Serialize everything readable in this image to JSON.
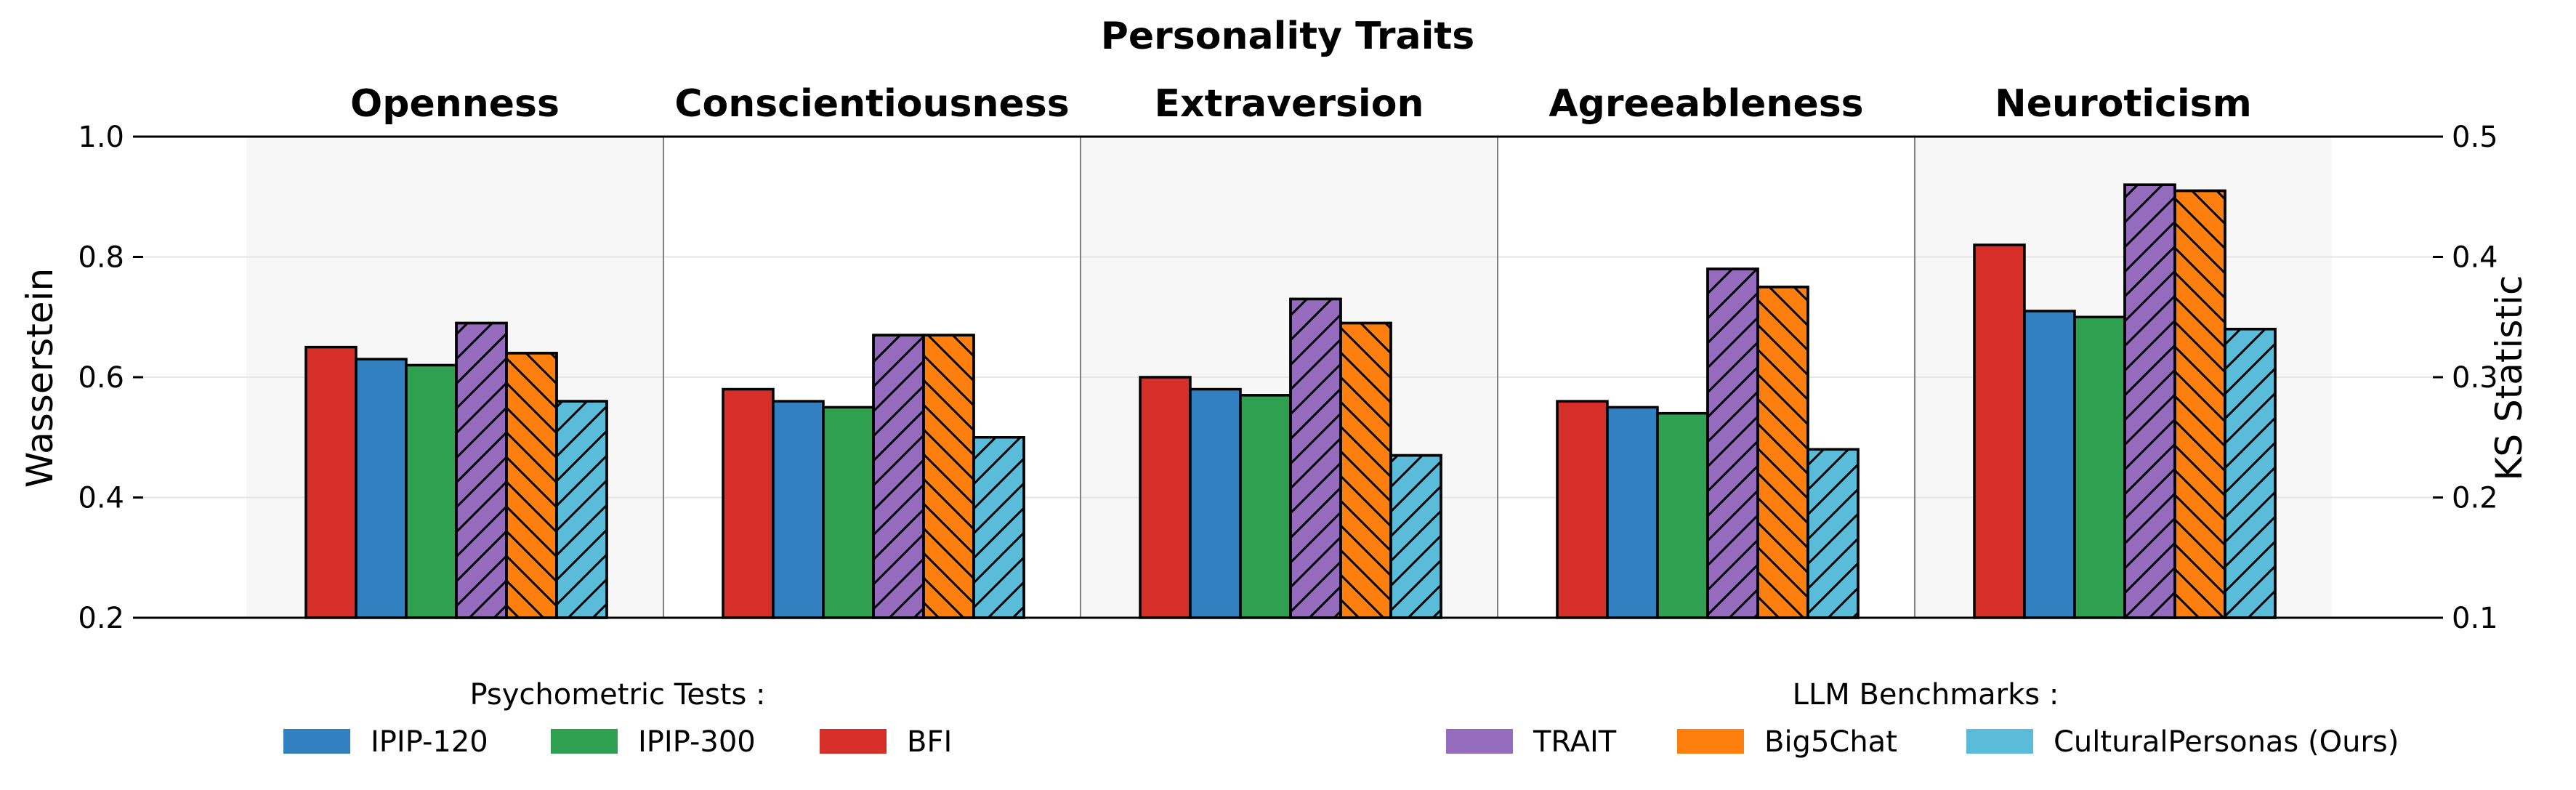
{
  "chart_data": {
    "type": "bar",
    "title": "Personality Traits",
    "categories": [
      "Openness",
      "Conscientiousness",
      "Extraversion",
      "Agreeableness",
      "Neuroticism"
    ],
    "ylabel": "Wasserstein",
    "ylabel_right": "KS Statistic",
    "ylim": [
      0.2,
      1.0
    ],
    "ylim_right": [
      0.1,
      0.5
    ],
    "yticks": [
      "0.2",
      "0.4",
      "0.6",
      "0.8",
      "1.0"
    ],
    "yticks_right": [
      "0.1",
      "0.2",
      "0.3",
      "0.4",
      "0.5"
    ],
    "grid": true,
    "series": [
      {
        "name": "BFI",
        "color": "#d62f2a",
        "hatch": "none",
        "values": [
          0.65,
          0.58,
          0.6,
          0.56,
          0.82
        ]
      },
      {
        "name": "IPIP-120",
        "color": "#3280bf",
        "hatch": "none",
        "values": [
          0.63,
          0.56,
          0.58,
          0.55,
          0.71
        ]
      },
      {
        "name": "IPIP-300",
        "color": "#2fa04f",
        "hatch": "none",
        "values": [
          0.62,
          0.55,
          0.57,
          0.54,
          0.7
        ]
      },
      {
        "name": "TRAIT",
        "color": "#946bbd",
        "hatch": "forward",
        "values": [
          0.69,
          0.67,
          0.73,
          0.78,
          0.92
        ]
      },
      {
        "name": "Big5Chat",
        "color": "#ff7f0e",
        "hatch": "back",
        "values": [
          0.64,
          0.67,
          0.69,
          0.75,
          0.91
        ]
      },
      {
        "name": "CulturalPersonas (Ours)",
        "color": "#5bbcd9",
        "hatch": "forward",
        "values": [
          0.56,
          0.5,
          0.47,
          0.48,
          0.68
        ]
      }
    ],
    "legend": {
      "left_title": "Psychometric Tests :",
      "left_items": [
        "IPIP-120",
        "IPIP-300",
        "BFI"
      ],
      "right_title": "LLM Benchmarks :",
      "right_items": [
        "TRAIT",
        "Big5Chat",
        "CulturalPersonas (Ours)"
      ],
      "placement": "bottom"
    }
  }
}
